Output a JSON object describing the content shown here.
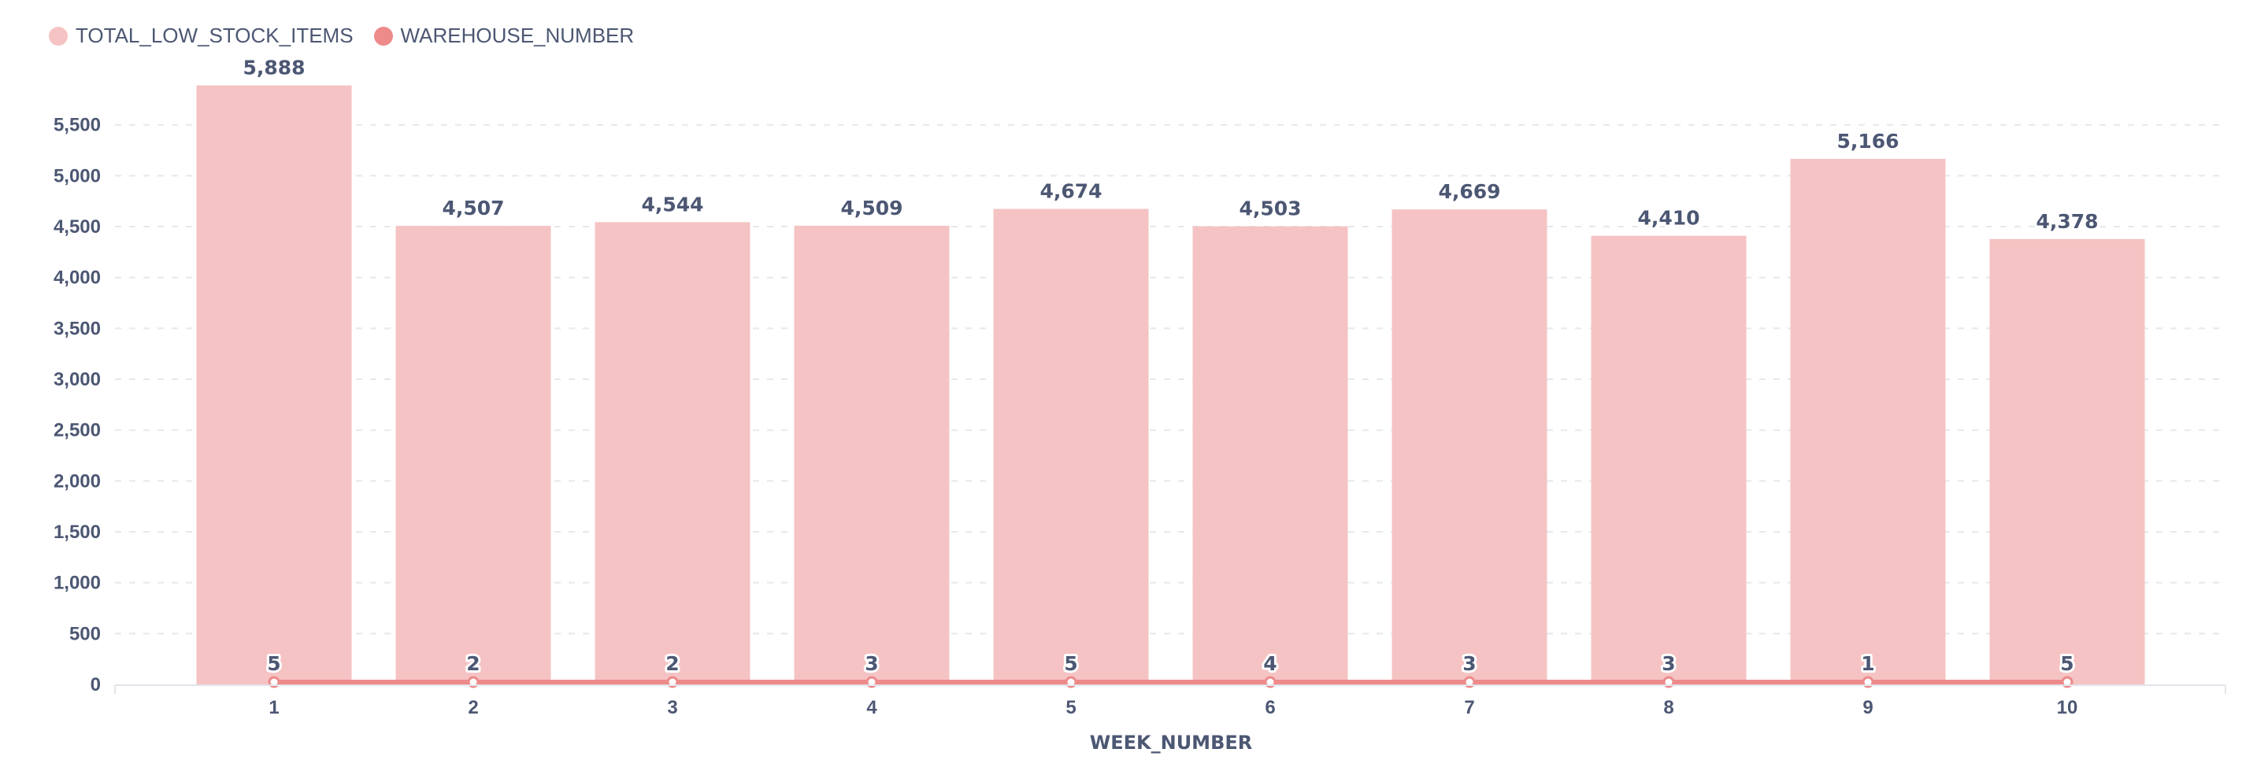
{
  "chart_data": {
    "type": "bar",
    "categories": [
      "1",
      "2",
      "3",
      "4",
      "5",
      "6",
      "7",
      "8",
      "9",
      "10"
    ],
    "series": [
      {
        "name": "TOTAL_LOW_STOCK_ITEMS",
        "type": "bar",
        "color": "#f5c3c3",
        "values": [
          5888,
          4507,
          4544,
          4509,
          4674,
          4503,
          4669,
          4410,
          5166,
          4378
        ],
        "labels": [
          "5,888",
          "4,507",
          "4,544",
          "4,509",
          "4,674",
          "4,503",
          "4,669",
          "4,410",
          "5,166",
          "4,378"
        ]
      },
      {
        "name": "WAREHOUSE_NUMBER",
        "type": "line",
        "color": "#ed8a8a",
        "values": [
          5,
          2,
          2,
          3,
          5,
          4,
          3,
          3,
          1,
          5
        ],
        "labels": [
          "5",
          "2",
          "2",
          "3",
          "5",
          "4",
          "3",
          "3",
          "1",
          "5"
        ]
      }
    ],
    "xlabel": "WEEK_NUMBER",
    "ylabel": "",
    "ylim": [
      0,
      5900
    ],
    "yticks": [
      0,
      500,
      1000,
      1500,
      2000,
      2500,
      3000,
      3500,
      4000,
      4500,
      5000,
      5500
    ],
    "ytick_labels": [
      "0",
      "500",
      "1,000",
      "1,500",
      "2,000",
      "2,500",
      "3,000",
      "3,500",
      "4,000",
      "4,500",
      "5,000",
      "5,500"
    ],
    "grid": true,
    "legend": "top-left"
  }
}
